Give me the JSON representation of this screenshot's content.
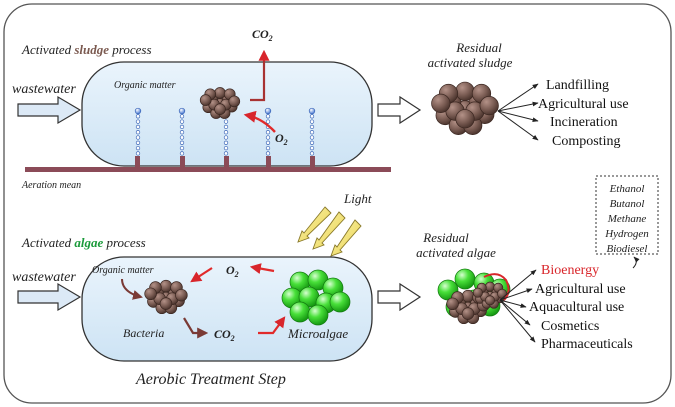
{
  "title": "Aerobic Treatment Step",
  "sludge": {
    "label_prefix": "Activated ",
    "label_key": "sludge",
    "label_suffix": " process",
    "key_color": "#7b5a50",
    "input": "wastewater",
    "organic_matter": "Organic matter",
    "co2": "CO",
    "co2_sub": "2",
    "o2": "O",
    "o2_sub": "2",
    "aeration": "Aeration mean",
    "residual_line1": "Residual",
    "residual_line2": "activated sludge",
    "uses": [
      "Landfilling",
      "Agricultural use",
      "Incineration",
      "Composting"
    ]
  },
  "algae": {
    "label_prefix": "Activated ",
    "label_key": "algae",
    "label_suffix": " process",
    "key_color": "#1a9a3a",
    "input": "wastewater",
    "light": "Light",
    "organic_matter": "Organic matter",
    "bacteria": "Bacteria",
    "microalgae": "Microalgae",
    "o2": "O",
    "o2_sub": "2",
    "co2": "CO",
    "co2_sub": "2",
    "residual_line1": "Residual",
    "residual_line2": "activated algae",
    "bioenergy": "Bioenergy",
    "bioenergy_color": "#d9262b",
    "bioenergy_products": [
      "Ethanol",
      "Butanol",
      "Methane",
      "Hydrogen",
      "Biodiesel"
    ],
    "uses": [
      "Agricultural use",
      "Aquacultural use",
      "Cosmetics",
      "Pharmaceuticals"
    ]
  }
}
